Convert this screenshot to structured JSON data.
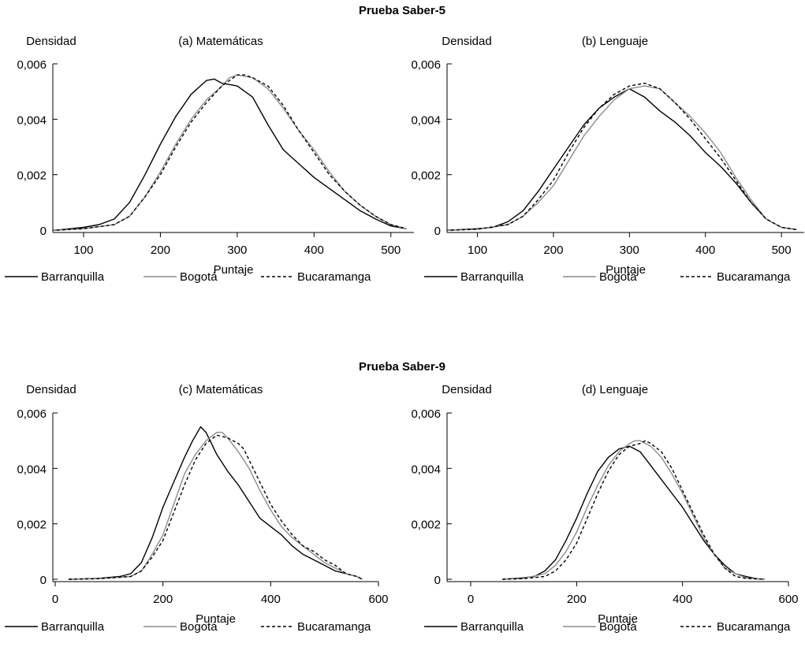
{
  "section_titles": [
    "Prueba Saber-5",
    "Prueba Saber-9"
  ],
  "legend_labels": [
    "Barranquilla",
    "Bogotá",
    "Bucaramanga"
  ],
  "chart_data": [
    {
      "type": "line",
      "section": "Prueba Saber-5",
      "title": "(a) Matemáticas",
      "xlabel": "Puntaje",
      "ylabel": "Densidad",
      "xlim": [
        60,
        530
      ],
      "ylim": [
        0,
        0.006
      ],
      "xticks": [
        100,
        200,
        300,
        400,
        500
      ],
      "xtick_labels": [
        "100",
        "200",
        "300",
        "400",
        "500"
      ],
      "yticks": [
        0,
        0.002,
        0.004,
        0.006
      ],
      "ytick_labels": [
        "0",
        "0,002",
        "0,004",
        "0,006"
      ],
      "legend": "bottom",
      "series": [
        {
          "name": "Barranquilla",
          "color": "#000000",
          "dash": "solid",
          "x": [
            65,
            100,
            120,
            140,
            160,
            180,
            200,
            220,
            240,
            260,
            270,
            280,
            300,
            320,
            340,
            360,
            380,
            400,
            420,
            440,
            460,
            480,
            500,
            520
          ],
          "y": [
            0,
            0.0001,
            0.0002,
            0.0004,
            0.001,
            0.002,
            0.0031,
            0.0041,
            0.0049,
            0.0054,
            0.00545,
            0.0053,
            0.0052,
            0.0048,
            0.0038,
            0.0029,
            0.0024,
            0.0019,
            0.0015,
            0.0011,
            0.0007,
            0.0004,
            0.00015,
            5e-05
          ]
        },
        {
          "name": "Bogotá",
          "color": "#8c8c8c",
          "dash": "solid",
          "x": [
            65,
            100,
            140,
            160,
            180,
            200,
            220,
            240,
            260,
            280,
            290,
            300,
            320,
            340,
            360,
            380,
            400,
            420,
            440,
            460,
            480,
            500,
            520
          ],
          "y": [
            0,
            5e-05,
            0.0002,
            0.0005,
            0.0012,
            0.0021,
            0.0031,
            0.004,
            0.0047,
            0.0052,
            0.0055,
            0.0056,
            0.0055,
            0.0051,
            0.0044,
            0.0036,
            0.0029,
            0.0021,
            0.0014,
            0.0009,
            0.0005,
            0.0002,
            5e-05
          ]
        },
        {
          "name": "Bucaramanga",
          "color": "#000000",
          "dash": "dashed",
          "x": [
            65,
            100,
            140,
            160,
            180,
            200,
            220,
            240,
            260,
            280,
            300,
            310,
            320,
            340,
            360,
            380,
            400,
            420,
            440,
            460,
            480,
            500,
            520
          ],
          "y": [
            0,
            5e-05,
            0.0002,
            0.0005,
            0.0012,
            0.002,
            0.003,
            0.0039,
            0.0046,
            0.0052,
            0.0056,
            0.0056,
            0.0055,
            0.0052,
            0.0045,
            0.0036,
            0.0028,
            0.002,
            0.0014,
            0.0009,
            0.0005,
            0.0002,
            5e-05
          ]
        }
      ]
    },
    {
      "type": "line",
      "section": "Prueba Saber-5",
      "title": "(b) Lenguaje",
      "xlabel": "Puntaje",
      "ylabel": "Densidad",
      "xlim": [
        60,
        530
      ],
      "ylim": [
        0,
        0.006
      ],
      "xticks": [
        100,
        200,
        300,
        400,
        500
      ],
      "xtick_labels": [
        "100",
        "200",
        "300",
        "400",
        "500"
      ],
      "yticks": [
        0,
        0.002,
        0.004,
        0.006
      ],
      "ytick_labels": [
        "0",
        "0,002",
        "0,004",
        "0,006"
      ],
      "legend": "bottom",
      "series": [
        {
          "name": "Barranquilla",
          "color": "#000000",
          "dash": "solid",
          "x": [
            65,
            100,
            120,
            140,
            160,
            180,
            200,
            220,
            240,
            260,
            280,
            300,
            320,
            340,
            360,
            380,
            400,
            420,
            440,
            460,
            480,
            500,
            520
          ],
          "y": [
            0,
            5e-05,
            0.0001,
            0.0003,
            0.0007,
            0.0014,
            0.0022,
            0.003,
            0.0038,
            0.0044,
            0.0048,
            0.0051,
            0.0048,
            0.0043,
            0.0039,
            0.0034,
            0.0028,
            0.0023,
            0.0017,
            0.001,
            0.0004,
            0.0001,
            2e-05
          ]
        },
        {
          "name": "Bogotá",
          "color": "#8c8c8c",
          "dash": "solid",
          "x": [
            65,
            100,
            140,
            160,
            180,
            200,
            220,
            240,
            260,
            280,
            300,
            320,
            340,
            360,
            380,
            400,
            420,
            440,
            460,
            480,
            500,
            520
          ],
          "y": [
            0,
            3e-05,
            0.0002,
            0.0005,
            0.001,
            0.0016,
            0.0025,
            0.0034,
            0.0041,
            0.0047,
            0.0051,
            0.0052,
            0.0051,
            0.0046,
            0.0041,
            0.0035,
            0.0028,
            0.0019,
            0.0011,
            0.0004,
            0.0001,
            2e-05
          ]
        },
        {
          "name": "Bucaramanga",
          "color": "#000000",
          "dash": "dashed",
          "x": [
            65,
            100,
            140,
            160,
            180,
            200,
            220,
            240,
            260,
            280,
            300,
            320,
            340,
            360,
            380,
            400,
            420,
            440,
            460,
            480,
            500,
            520
          ],
          "y": [
            0,
            3e-05,
            0.0002,
            0.0005,
            0.0011,
            0.0018,
            0.0028,
            0.0037,
            0.0044,
            0.0049,
            0.0052,
            0.0053,
            0.0051,
            0.0046,
            0.004,
            0.0033,
            0.0026,
            0.0018,
            0.001,
            0.0004,
            0.0001,
            2e-05
          ]
        }
      ]
    },
    {
      "type": "line",
      "section": "Prueba Saber-9",
      "title": "(c) Matemáticas",
      "xlabel": "Puntaje",
      "ylabel": "Densidad",
      "xlim": [
        0,
        600
      ],
      "ylim": [
        0,
        0.006
      ],
      "xticks": [
        0,
        200,
        400,
        600
      ],
      "xtick_labels": [
        "0",
        "200",
        "400",
        "600"
      ],
      "yticks": [
        0,
        0.002,
        0.004,
        0.006
      ],
      "ytick_labels": [
        "0",
        "0,002",
        "0,004",
        "0,006"
      ],
      "legend": "bottom",
      "series": [
        {
          "name": "Barranquilla",
          "color": "#000000",
          "dash": "solid",
          "x": [
            25,
            80,
            120,
            140,
            160,
            180,
            200,
            220,
            240,
            255,
            270,
            280,
            300,
            320,
            340,
            360,
            380,
            400,
            420,
            440,
            460,
            480,
            500,
            520,
            540,
            560,
            570
          ],
          "y": [
            0,
            3e-05,
            0.0001,
            0.0002,
            0.0006,
            0.0015,
            0.0026,
            0.0035,
            0.0044,
            0.005,
            0.0055,
            0.0053,
            0.0045,
            0.0039,
            0.0034,
            0.0028,
            0.0022,
            0.0019,
            0.0016,
            0.0012,
            0.0009,
            0.0007,
            0.0005,
            0.0003,
            0.0002,
            0.0001,
            0
          ]
        },
        {
          "name": "Bogotá",
          "color": "#8c8c8c",
          "dash": "solid",
          "x": [
            25,
            80,
            140,
            160,
            180,
            200,
            220,
            240,
            260,
            280,
            300,
            310,
            320,
            340,
            360,
            380,
            400,
            420,
            440,
            460,
            480,
            500,
            520,
            540,
            560,
            570
          ],
          "y": [
            0,
            2e-05,
            0.0001,
            0.0003,
            0.0009,
            0.0016,
            0.0027,
            0.0038,
            0.0045,
            0.005,
            0.0053,
            0.0053,
            0.0051,
            0.0046,
            0.004,
            0.0032,
            0.0025,
            0.0019,
            0.0015,
            0.0012,
            0.0009,
            0.0006,
            0.0004,
            0.0002,
            0.0001,
            0
          ]
        },
        {
          "name": "Bucaramanga",
          "color": "#000000",
          "dash": "dashed",
          "x": [
            25,
            80,
            140,
            160,
            180,
            200,
            220,
            240,
            260,
            280,
            300,
            320,
            340,
            350,
            360,
            380,
            400,
            420,
            440,
            460,
            480,
            500,
            520,
            540,
            560,
            570
          ],
          "y": [
            0,
            2e-05,
            0.0001,
            0.0003,
            0.0008,
            0.0014,
            0.0024,
            0.0034,
            0.0043,
            0.0049,
            0.0052,
            0.0051,
            0.0049,
            0.0047,
            0.0043,
            0.0035,
            0.0027,
            0.0021,
            0.0016,
            0.0012,
            0.001,
            0.0007,
            0.0005,
            0.0002,
            0.0001,
            0
          ]
        }
      ]
    },
    {
      "type": "line",
      "section": "Prueba Saber-9",
      "title": "(d) Lenguaje",
      "xlabel": "Puntaje",
      "ylabel": "Densidad",
      "xlim": [
        0,
        600
      ],
      "ylim": [
        0,
        0.006
      ],
      "xticks": [
        0,
        200,
        400,
        600
      ],
      "xtick_labels": [
        "0",
        "200",
        "400",
        "600"
      ],
      "yticks": [
        0,
        0.002,
        0.004,
        0.006
      ],
      "ytick_labels": [
        "0",
        "0,002",
        "0,004",
        "0,006"
      ],
      "legend": "bottom",
      "series": [
        {
          "name": "Barranquilla",
          "color": "#000000",
          "dash": "solid",
          "x": [
            60,
            100,
            120,
            140,
            160,
            180,
            200,
            220,
            240,
            260,
            280,
            300,
            320,
            340,
            360,
            380,
            400,
            420,
            440,
            460,
            480,
            500,
            520,
            540,
            555
          ],
          "y": [
            0,
            5e-05,
            0.0001,
            0.0003,
            0.0007,
            0.0014,
            0.0022,
            0.0031,
            0.0039,
            0.0044,
            0.0047,
            0.0048,
            0.0046,
            0.0041,
            0.0036,
            0.0031,
            0.0026,
            0.002,
            0.0014,
            0.0009,
            0.0005,
            0.0002,
            0.0001,
            2e-05,
            0
          ]
        },
        {
          "name": "Bogotá",
          "color": "#8c8c8c",
          "dash": "solid",
          "x": [
            60,
            100,
            140,
            160,
            180,
            200,
            220,
            240,
            260,
            280,
            300,
            310,
            320,
            340,
            360,
            380,
            400,
            420,
            440,
            460,
            480,
            500,
            520,
            540,
            555
          ],
          "y": [
            0,
            3e-05,
            0.0002,
            0.0005,
            0.001,
            0.0017,
            0.0026,
            0.0034,
            0.0041,
            0.0046,
            0.0049,
            0.005,
            0.005,
            0.0048,
            0.0044,
            0.0038,
            0.0031,
            0.0023,
            0.0015,
            0.0009,
            0.0004,
            0.0002,
            5e-05,
            1e-05,
            0
          ]
        },
        {
          "name": "Bucaramanga",
          "color": "#000000",
          "dash": "dashed",
          "x": [
            60,
            100,
            140,
            160,
            180,
            200,
            220,
            240,
            260,
            280,
            300,
            320,
            330,
            340,
            360,
            380,
            400,
            420,
            440,
            460,
            480,
            500,
            520,
            540,
            555
          ],
          "y": [
            0,
            2e-05,
            0.0001,
            0.0003,
            0.0007,
            0.0013,
            0.0022,
            0.0031,
            0.0039,
            0.0045,
            0.0048,
            0.0049,
            0.005,
            0.0049,
            0.0046,
            0.004,
            0.0032,
            0.0024,
            0.0016,
            0.0009,
            0.0004,
            0.0001,
            3e-05,
            1e-05,
            0
          ]
        }
      ]
    }
  ]
}
